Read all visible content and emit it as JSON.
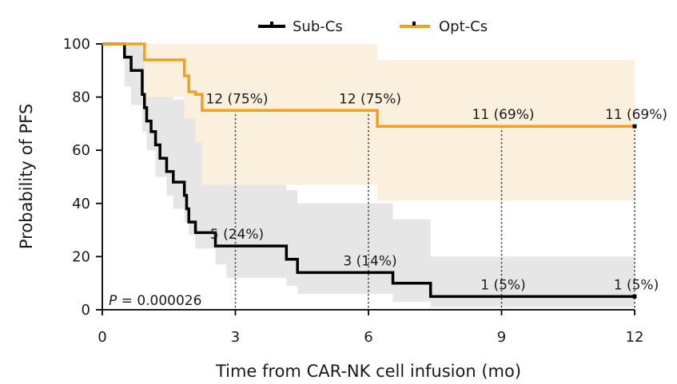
{
  "chart_data": {
    "type": "line",
    "step": true,
    "xlabel": "Time from CAR-NK cell infusion (mo)",
    "ylabel": "Probability of PFS",
    "xlim": [
      0,
      12
    ],
    "ylim": [
      0,
      100
    ],
    "xticks": [
      0,
      3,
      6,
      9,
      12
    ],
    "yticks": [
      0,
      20,
      40,
      60,
      80,
      100
    ],
    "grid": false,
    "legend_position": "top",
    "p_value": {
      "label": "P",
      "text": "= 0.000026"
    },
    "series": [
      {
        "name": "Sub-Cs",
        "color": "#000000",
        "ci_color": "#e6e6e6",
        "steps": [
          [
            0,
            100
          ],
          [
            0.5,
            95
          ],
          [
            0.65,
            90
          ],
          [
            0.9,
            81
          ],
          [
            0.95,
            76
          ],
          [
            1.0,
            71
          ],
          [
            1.1,
            67
          ],
          [
            1.2,
            62
          ],
          [
            1.3,
            57
          ],
          [
            1.45,
            52
          ],
          [
            1.6,
            48
          ],
          [
            1.85,
            43
          ],
          [
            1.9,
            38
          ],
          [
            1.95,
            33
          ],
          [
            2.1,
            29
          ],
          [
            2.55,
            24
          ],
          [
            4.15,
            19
          ],
          [
            4.4,
            14
          ],
          [
            6.55,
            10
          ],
          [
            7.4,
            5
          ],
          [
            12,
            5
          ]
        ],
        "ci_upper": [
          [
            0,
            100
          ],
          [
            0.5,
            100
          ],
          [
            0.65,
            100
          ],
          [
            0.9,
            97
          ],
          [
            1.1,
            93
          ],
          [
            1.3,
            86
          ],
          [
            1.6,
            79
          ],
          [
            1.95,
            72
          ],
          [
            2.2,
            66
          ],
          [
            2.55,
            60
          ],
          [
            3.1,
            52
          ],
          [
            4.15,
            45
          ],
          [
            4.4,
            40
          ],
          [
            6.55,
            34
          ],
          [
            7.4,
            20
          ],
          [
            12,
            20
          ]
        ],
        "ci_lower": [
          [
            0,
            100
          ],
          [
            0.5,
            84
          ],
          [
            0.65,
            77
          ],
          [
            0.9,
            67
          ],
          [
            1.0,
            60
          ],
          [
            1.2,
            50
          ],
          [
            1.45,
            43
          ],
          [
            1.6,
            38
          ],
          [
            1.85,
            33
          ],
          [
            1.95,
            28
          ],
          [
            2.1,
            23
          ],
          [
            2.55,
            17
          ],
          [
            2.8,
            12
          ],
          [
            4.15,
            9
          ],
          [
            4.4,
            6
          ],
          [
            6.55,
            3
          ],
          [
            7.4,
            1
          ],
          [
            12,
            1
          ]
        ],
        "censor_marks": [
          [
            12,
            5
          ]
        ]
      },
      {
        "name": "Opt-Cs",
        "color": "#f0a11d",
        "ci_color": "#fbf0dd",
        "steps": [
          [
            0,
            100
          ],
          [
            0.95,
            94
          ],
          [
            1.85,
            88
          ],
          [
            1.95,
            82
          ],
          [
            2.1,
            81
          ],
          [
            2.25,
            75
          ],
          [
            6.2,
            69
          ],
          [
            12,
            69
          ]
        ],
        "ci_upper": [
          [
            0,
            100
          ],
          [
            0.95,
            100
          ],
          [
            6.2,
            94
          ],
          [
            12,
            86
          ]
        ],
        "ci_lower": [
          [
            0,
            100
          ],
          [
            0.95,
            80
          ],
          [
            1.85,
            72
          ],
          [
            2.1,
            63
          ],
          [
            2.25,
            47
          ],
          [
            6.2,
            41
          ],
          [
            12,
            41
          ]
        ],
        "censor_marks": [
          [
            12,
            69
          ]
        ]
      }
    ],
    "annotations": [
      {
        "x": 3,
        "y": 75,
        "text": "12 (75%)",
        "series": "Opt-Cs"
      },
      {
        "x": 6,
        "y": 75,
        "text": "12 (75%)",
        "series": "Opt-Cs"
      },
      {
        "x": 9,
        "y": 69,
        "text": "11 (69%)",
        "series": "Opt-Cs"
      },
      {
        "x": 12,
        "y": 69,
        "text": "11 (69%)",
        "series": "Opt-Cs"
      },
      {
        "x": 3,
        "y": 24,
        "text": "5 (24%)",
        "series": "Sub-Cs"
      },
      {
        "x": 6,
        "y": 14,
        "text": "3 (14%)",
        "series": "Sub-Cs"
      },
      {
        "x": 9,
        "y": 5,
        "text": "1 (5%)",
        "series": "Sub-Cs"
      },
      {
        "x": 12,
        "y": 5,
        "text": "1 (5%)",
        "series": "Sub-Cs"
      }
    ]
  }
}
